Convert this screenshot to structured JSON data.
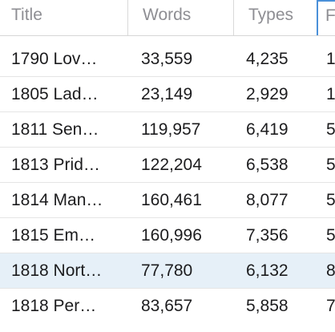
{
  "columns": [
    "Title",
    "Words",
    "Types",
    "F"
  ],
  "rows": [
    {
      "title": "1790 Lov…",
      "words": "33,559",
      "types": "4,235",
      "extra": "1",
      "selected": false
    },
    {
      "title": "1805 Lad…",
      "words": "23,149",
      "types": "2,929",
      "extra": "1",
      "selected": false
    },
    {
      "title": "1811 Sen…",
      "words": "119,957",
      "types": "6,419",
      "extra": "5",
      "selected": false
    },
    {
      "title": "1813 Prid…",
      "words": "122,204",
      "types": "6,538",
      "extra": "5",
      "selected": false
    },
    {
      "title": "1814 Man…",
      "words": "160,461",
      "types": "8,077",
      "extra": "5",
      "selected": false
    },
    {
      "title": "1815 Em…",
      "words": "160,996",
      "types": "7,356",
      "extra": "5",
      "selected": false
    },
    {
      "title": "1818 Nort…",
      "words": "77,780",
      "types": "6,132",
      "extra": "8",
      "selected": true
    },
    {
      "title": "1818 Per…",
      "words": "83,657",
      "types": "5,858",
      "extra": "7",
      "selected": false
    }
  ],
  "colors": {
    "selected_row": "#e6f0f8",
    "header_text": "#8e8e93",
    "focus_border": "#4a90d9"
  }
}
